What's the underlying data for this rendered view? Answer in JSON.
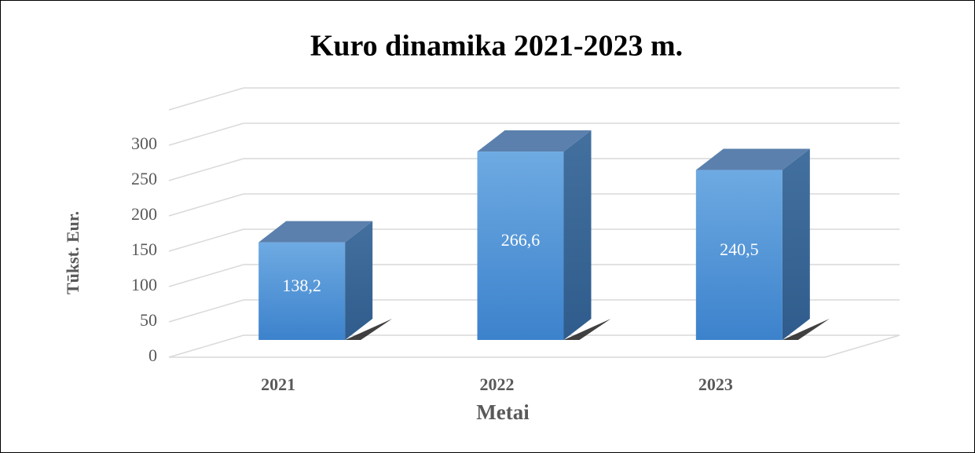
{
  "chart_data": {
    "type": "bar3d",
    "title": "Kuro dinamika 2021-2023 m.",
    "x_label": "Metai",
    "y_label": "Tūkst. Eur.",
    "categories": [
      "2021",
      "2022",
      "2023"
    ],
    "values": [
      138.2,
      266.6,
      240.5
    ],
    "value_labels": [
      "138,2",
      "266,6",
      "240,5"
    ],
    "color": "#4f93d8",
    "ylim": [
      0,
      350
    ],
    "yticks": [
      0,
      50,
      100,
      150,
      200,
      250,
      300
    ],
    "grid": true
  }
}
